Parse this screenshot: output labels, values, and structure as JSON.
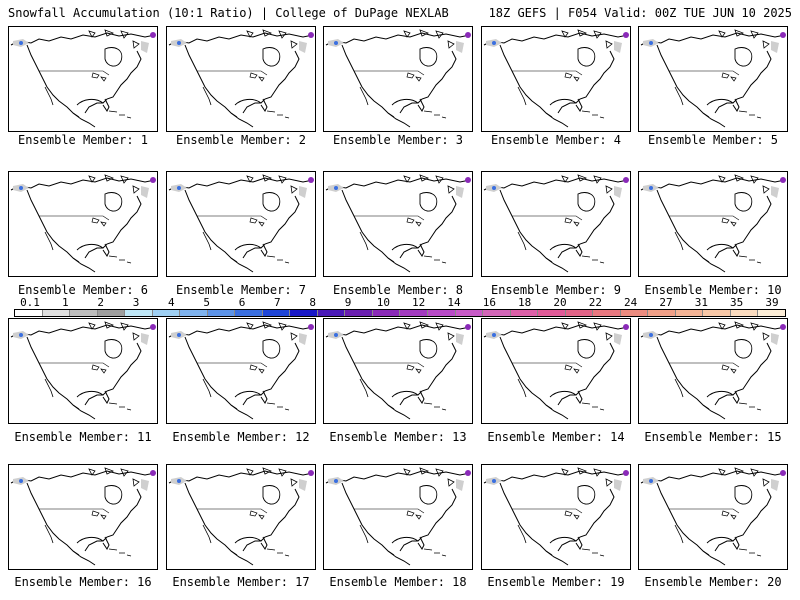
{
  "header": {
    "left": "Snowfall Accumulation (10:1 Ratio) | College of DuPage NEXLAB",
    "right": "18Z GEFS | F054 Valid: 00Z TUE JUN 10 2025"
  },
  "members": [
    "Ensemble Member: 1",
    "Ensemble Member: 2",
    "Ensemble Member: 3",
    "Ensemble Member: 4",
    "Ensemble Member: 5",
    "Ensemble Member: 6",
    "Ensemble Member: 7",
    "Ensemble Member: 8",
    "Ensemble Member: 9",
    "Ensemble Member: 10",
    "Ensemble Member: 11",
    "Ensemble Member: 12",
    "Ensemble Member: 13",
    "Ensemble Member: 14",
    "Ensemble Member: 15",
    "Ensemble Member: 16",
    "Ensemble Member: 17",
    "Ensemble Member: 18",
    "Ensemble Member: 19",
    "Ensemble Member: 20"
  ],
  "colorbar": {
    "labels": [
      "0.1",
      "1",
      "2",
      "3",
      "4",
      "5",
      "6",
      "7",
      "8",
      "9",
      "10",
      "12",
      "14",
      "16",
      "18",
      "20",
      "22",
      "24",
      "27",
      "31",
      "35",
      "39"
    ],
    "colors": [
      "#ffffff",
      "#e0e0e0",
      "#bdbdbd",
      "#9e9e9e",
      "#bfe7f7",
      "#9fd0f3",
      "#7fb3ee",
      "#5c93e8",
      "#3a6fe0",
      "#1f46d8",
      "#1818c8",
      "#4a1ab8",
      "#6a1fb0",
      "#8a2ab8",
      "#a23ac0",
      "#b84ac8",
      "#c85ac8",
      "#d266b8",
      "#dc60a8",
      "#e05a98",
      "#e26488",
      "#e87880",
      "#ec8c80",
      "#f0a088",
      "#f4b496",
      "#f8c8a8",
      "#fbdcc0",
      "#fdeed8"
    ]
  },
  "colors": {
    "background": "#ffffff",
    "map_lines": "#000000",
    "snow_grey": "#cfcfcf",
    "snow_blue": "#3a6fe0",
    "snow_purple": "#8a2ab8"
  }
}
